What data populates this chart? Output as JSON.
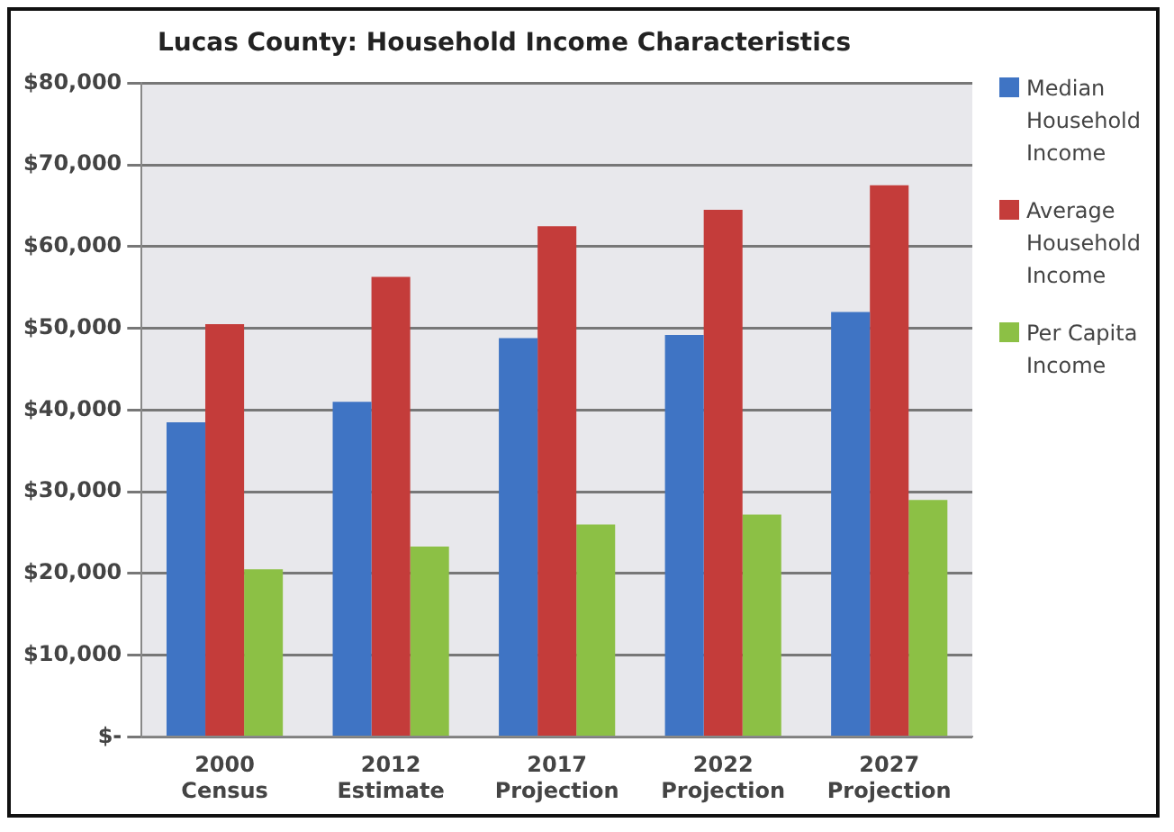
{
  "chart_data": {
    "type": "bar",
    "title": "Lucas County: Household Income Characteristics",
    "categories": [
      "2000 Census",
      "2012 Estimate",
      "2017 Projection",
      "2022 Projection",
      "2027 Projection"
    ],
    "series": [
      {
        "name": "Median Household Income",
        "color": "#3f74c4",
        "values": [
          38500,
          41000,
          48800,
          49200,
          52000
        ]
      },
      {
        "name": "Average Household Income",
        "color": "#c43c3a",
        "values": [
          50500,
          56300,
          62500,
          64500,
          67500
        ]
      },
      {
        "name": "Per Capita Income",
        "color": "#8cc045",
        "values": [
          20500,
          23300,
          26000,
          27200,
          29000
        ]
      }
    ],
    "ylim": [
      0,
      80000
    ],
    "yticks": [
      {
        "value": 0,
        "label": "$-"
      },
      {
        "value": 10000,
        "label": "$10,000"
      },
      {
        "value": 20000,
        "label": "$20,000"
      },
      {
        "value": 30000,
        "label": "$30,000"
      },
      {
        "value": 40000,
        "label": "$40,000"
      },
      {
        "value": 50000,
        "label": "$50,000"
      },
      {
        "value": 60000,
        "label": "$60,000"
      },
      {
        "value": 70000,
        "label": "$70,000"
      },
      {
        "value": 80000,
        "label": "$80,000"
      }
    ],
    "grid": "y",
    "legend": "right"
  }
}
